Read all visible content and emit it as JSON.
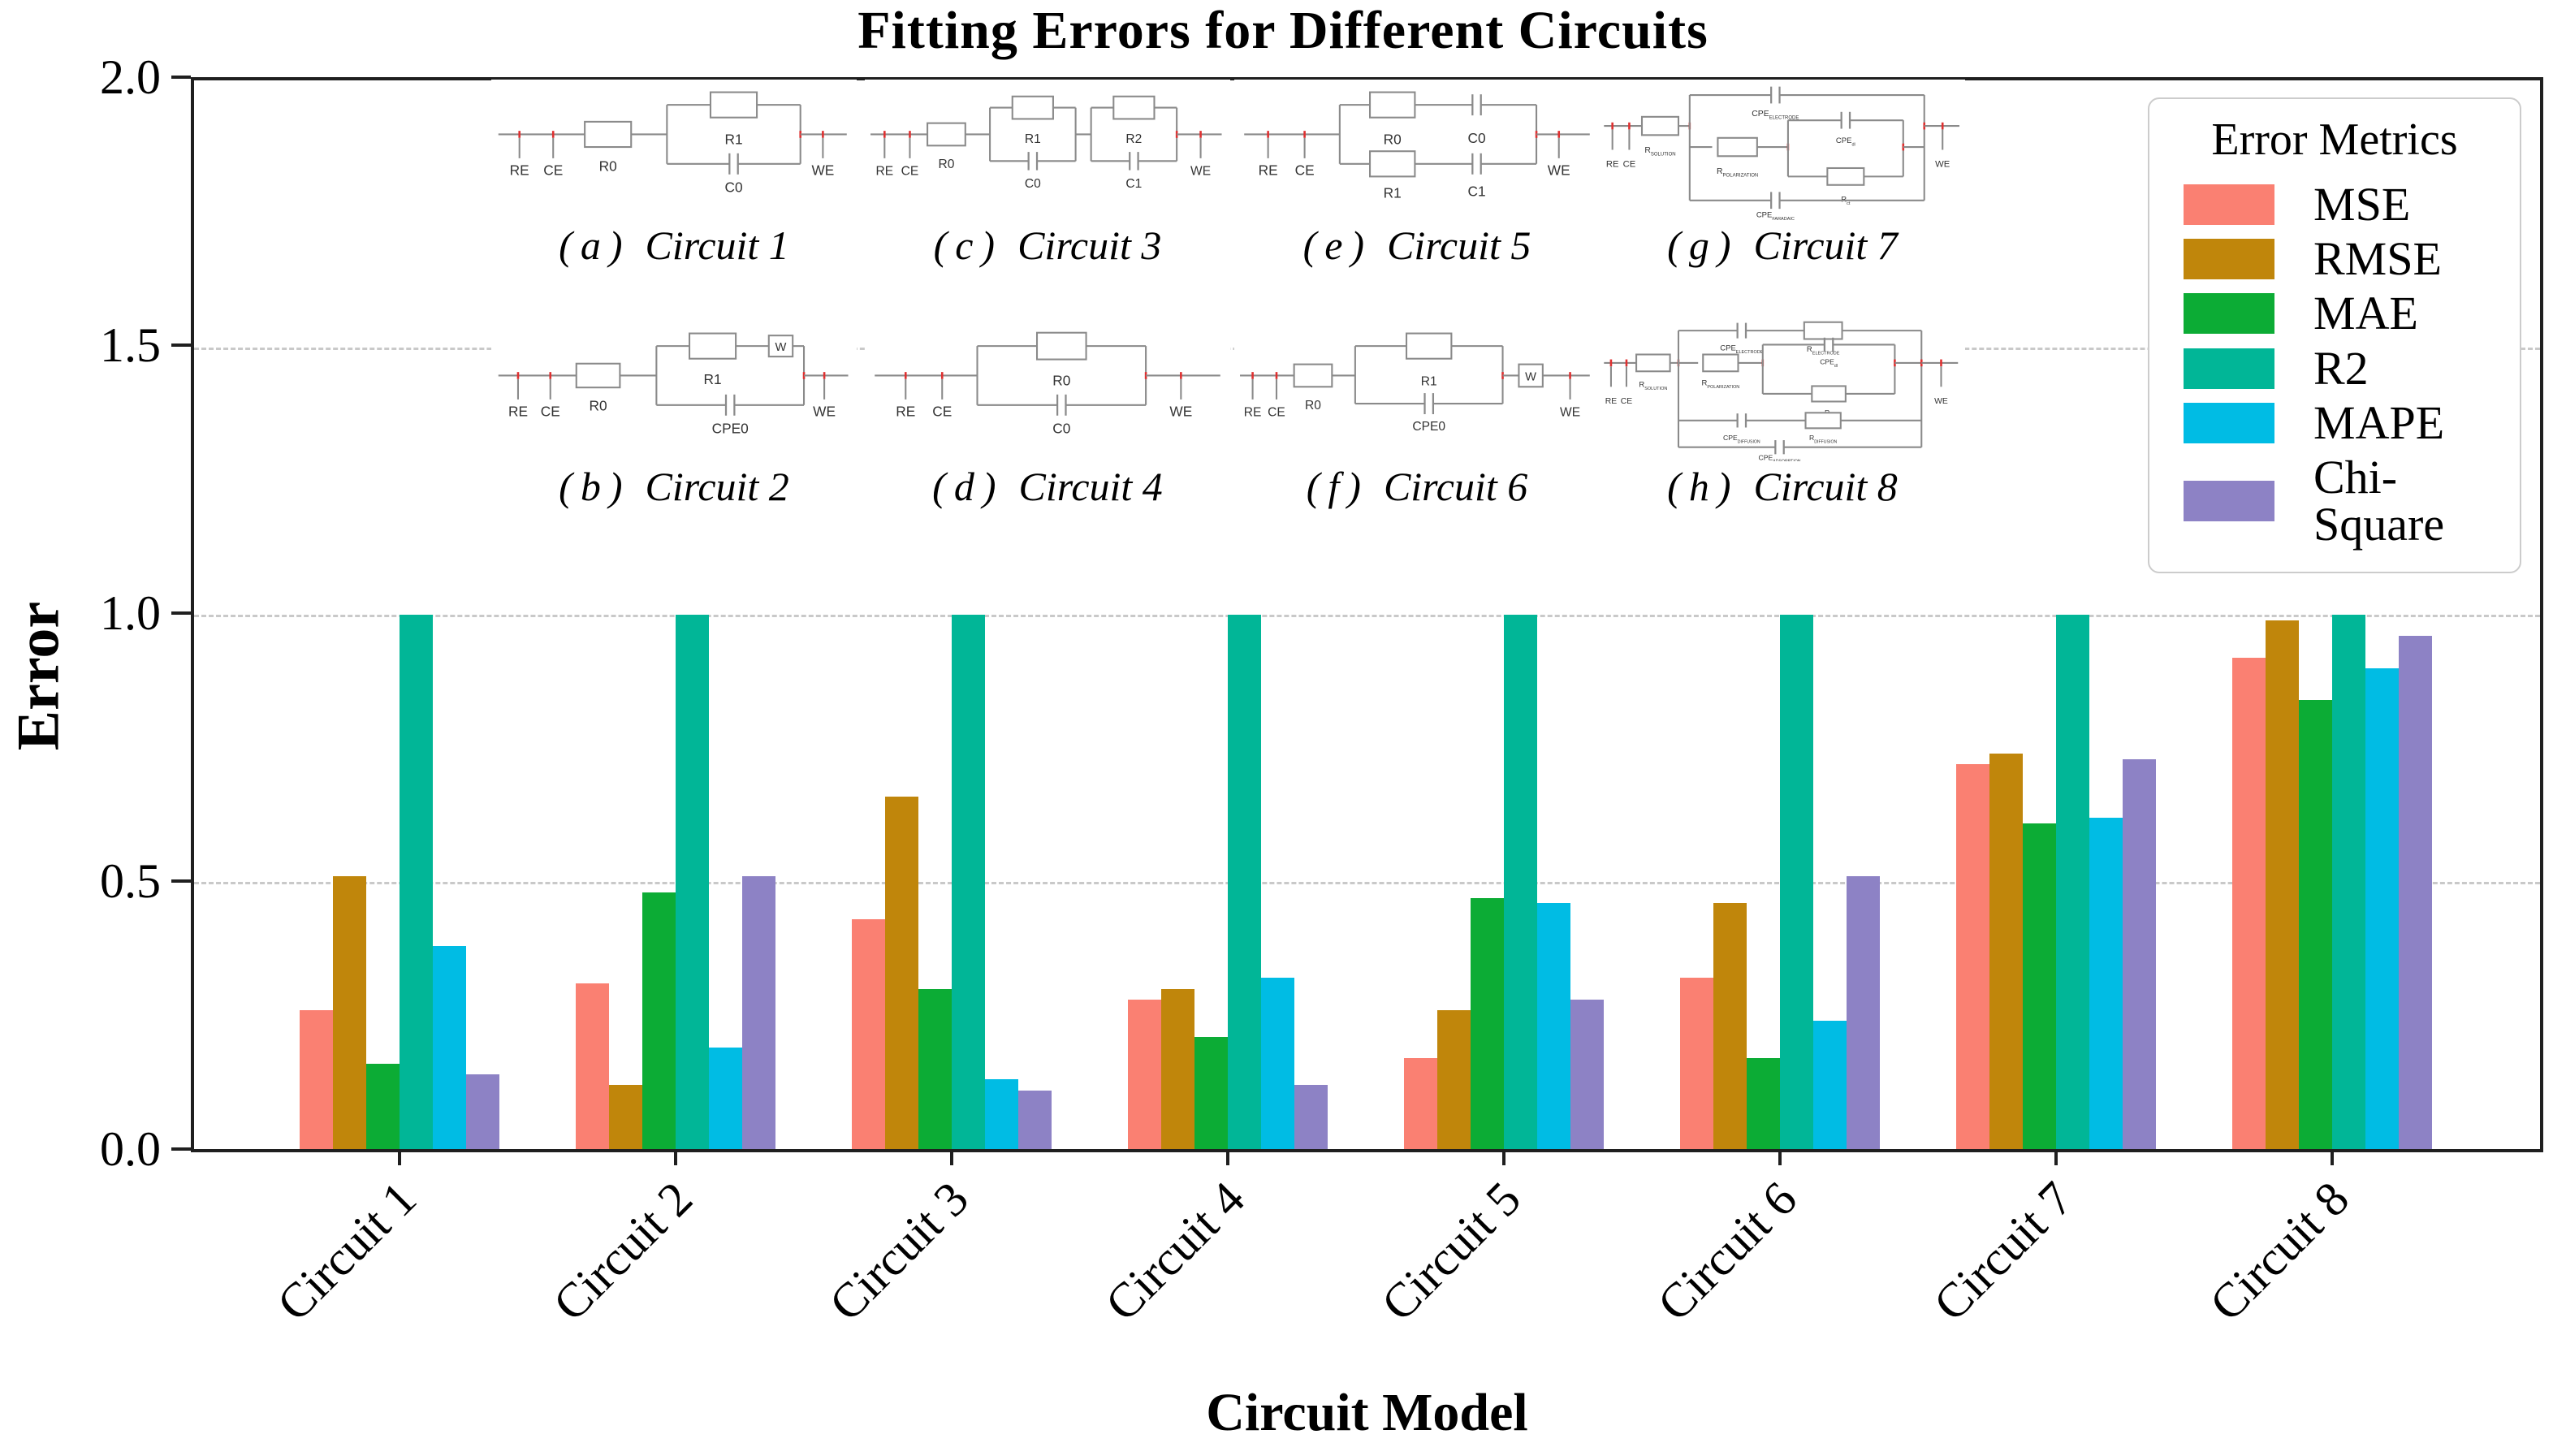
{
  "title": "Fitting Errors for Different Circuits",
  "axes": {
    "y_label": "Error",
    "x_label": "Circuit Model",
    "y_ticks": [
      {
        "value": 2.0,
        "label": "2.0"
      },
      {
        "value": 1.5,
        "label": "1.5"
      },
      {
        "value": 1.0,
        "label": "1.0"
      },
      {
        "value": 0.5,
        "label": "0.5"
      },
      {
        "value": 0.0,
        "label": "0.0"
      }
    ],
    "grid_values": [
      0.5,
      1.0,
      1.5
    ]
  },
  "legend": {
    "title": "Error Metrics",
    "position": "upper right"
  },
  "chart_data": {
    "type": "bar",
    "title": "Fitting Errors for Different Circuits",
    "xlabel": "Circuit Model",
    "ylabel": "Error",
    "ylim": [
      0,
      2.0
    ],
    "grid": "horizontal dashed at 0.5, 1.0, 1.5",
    "legend_position": "upper right",
    "categories": [
      "Circuit 1",
      "Circuit 2",
      "Circuit 3",
      "Circuit 4",
      "Circuit 5",
      "Circuit 6",
      "Circuit 7",
      "Circuit 8"
    ],
    "series": [
      {
        "name": "MSE",
        "color": "#FA8072",
        "values": [
          0.26,
          0.31,
          0.43,
          0.28,
          0.17,
          0.32,
          0.72,
          0.92
        ]
      },
      {
        "name": "RMSE",
        "color": "#C0860B",
        "values": [
          0.51,
          0.12,
          0.66,
          0.3,
          0.26,
          0.46,
          0.74,
          0.99
        ]
      },
      {
        "name": "MAE",
        "color": "#0CAC35",
        "values": [
          0.16,
          0.48,
          0.3,
          0.21,
          0.47,
          0.17,
          0.61,
          0.84
        ]
      },
      {
        "name": "R2",
        "color": "#01B697",
        "values": [
          1.0,
          1.0,
          1.0,
          1.0,
          1.0,
          1.0,
          1.0,
          1.0
        ]
      },
      {
        "name": "MAPE",
        "color": "#00BCE4",
        "values": [
          0.38,
          0.19,
          0.13,
          0.32,
          0.46,
          0.24,
          0.62,
          0.9
        ]
      },
      {
        "name": "Chi-Square",
        "color": "#8D82C5",
        "values": [
          0.14,
          0.51,
          0.11,
          0.12,
          0.28,
          0.51,
          0.73,
          0.96
        ]
      }
    ]
  },
  "insets": {
    "row1": [
      {
        "tag": "(a)",
        "name": "Circuit 1",
        "type": "c1",
        "labels": {
          "re": "RE",
          "ce": "CE",
          "we": "WE",
          "r0": "R0",
          "r1": "R1",
          "c0": "C0"
        }
      },
      {
        "tag": "(c)",
        "name": "Circuit 3",
        "type": "c3",
        "labels": {
          "re": "RE",
          "ce": "CE",
          "we": "WE",
          "r0": "R0",
          "r1": "R1",
          "c0": "C0",
          "r2": "R2",
          "c1": "C1"
        }
      },
      {
        "tag": "(e)",
        "name": "Circuit 5",
        "type": "c5",
        "labels": {
          "re": "RE",
          "ce": "CE",
          "we": "WE",
          "r0": "R0",
          "c0": "C0",
          "r1": "R1",
          "c1": "C1"
        }
      },
      {
        "tag": "(g)",
        "name": "Circuit 7",
        "type": "c7",
        "labels": {
          "re": "RE",
          "ce": "CE",
          "we": "WE",
          "rsol": {
            "t": "R",
            "s": "SOLUTION"
          },
          "cpee": {
            "t": "CPE",
            "s": "ELECTRODE"
          },
          "rpol": {
            "t": "R",
            "s": "POLARIZATION"
          },
          "cpedl": {
            "t": "CPE",
            "s": "dl"
          },
          "rct": {
            "t": "R",
            "s": "ct"
          },
          "cpef": {
            "t": "CPE",
            "s": "FARADAIC"
          }
        }
      }
    ],
    "row2": [
      {
        "tag": "(b)",
        "name": "Circuit 2",
        "type": "c2",
        "labels": {
          "re": "RE",
          "ce": "CE",
          "we": "WE",
          "r0": "R0",
          "r1": "R1",
          "w": "W",
          "cpe0": "CPE0"
        }
      },
      {
        "tag": "(d)",
        "name": "Circuit 4",
        "type": "c4",
        "labels": {
          "re": "RE",
          "ce": "CE",
          "we": "WE",
          "r0": "R0",
          "c0": "C0"
        }
      },
      {
        "tag": "(f)",
        "name": "Circuit 6",
        "type": "c6",
        "labels": {
          "re": "RE",
          "ce": "CE",
          "we": "WE",
          "r0": "R0",
          "r1": "R1",
          "cpe0": "CPE0",
          "w": "W"
        }
      },
      {
        "tag": "(h)",
        "name": "Circuit 8",
        "type": "c8",
        "labels": {
          "re": "RE",
          "ce": "CE",
          "we": "WE",
          "rsol": {
            "t": "R",
            "s": "SOLUTION"
          },
          "cpee": {
            "t": "CPE",
            "s": "ELECTRODE"
          },
          "relec": {
            "t": "R",
            "s": "ELECTRODE"
          },
          "rpol": {
            "t": "R",
            "s": "POLARIZATION"
          },
          "cpedl": {
            "t": "CPE",
            "s": "dl"
          },
          "rct": {
            "t": "R",
            "s": "ct"
          },
          "cpedif": {
            "t": "CPE",
            "s": "DIFFUSION"
          },
          "rdif": {
            "t": "R",
            "s": "DIFFUSION"
          },
          "cpeads": {
            "t": "CPE",
            "s": "ADSORPTION"
          }
        }
      }
    ]
  }
}
